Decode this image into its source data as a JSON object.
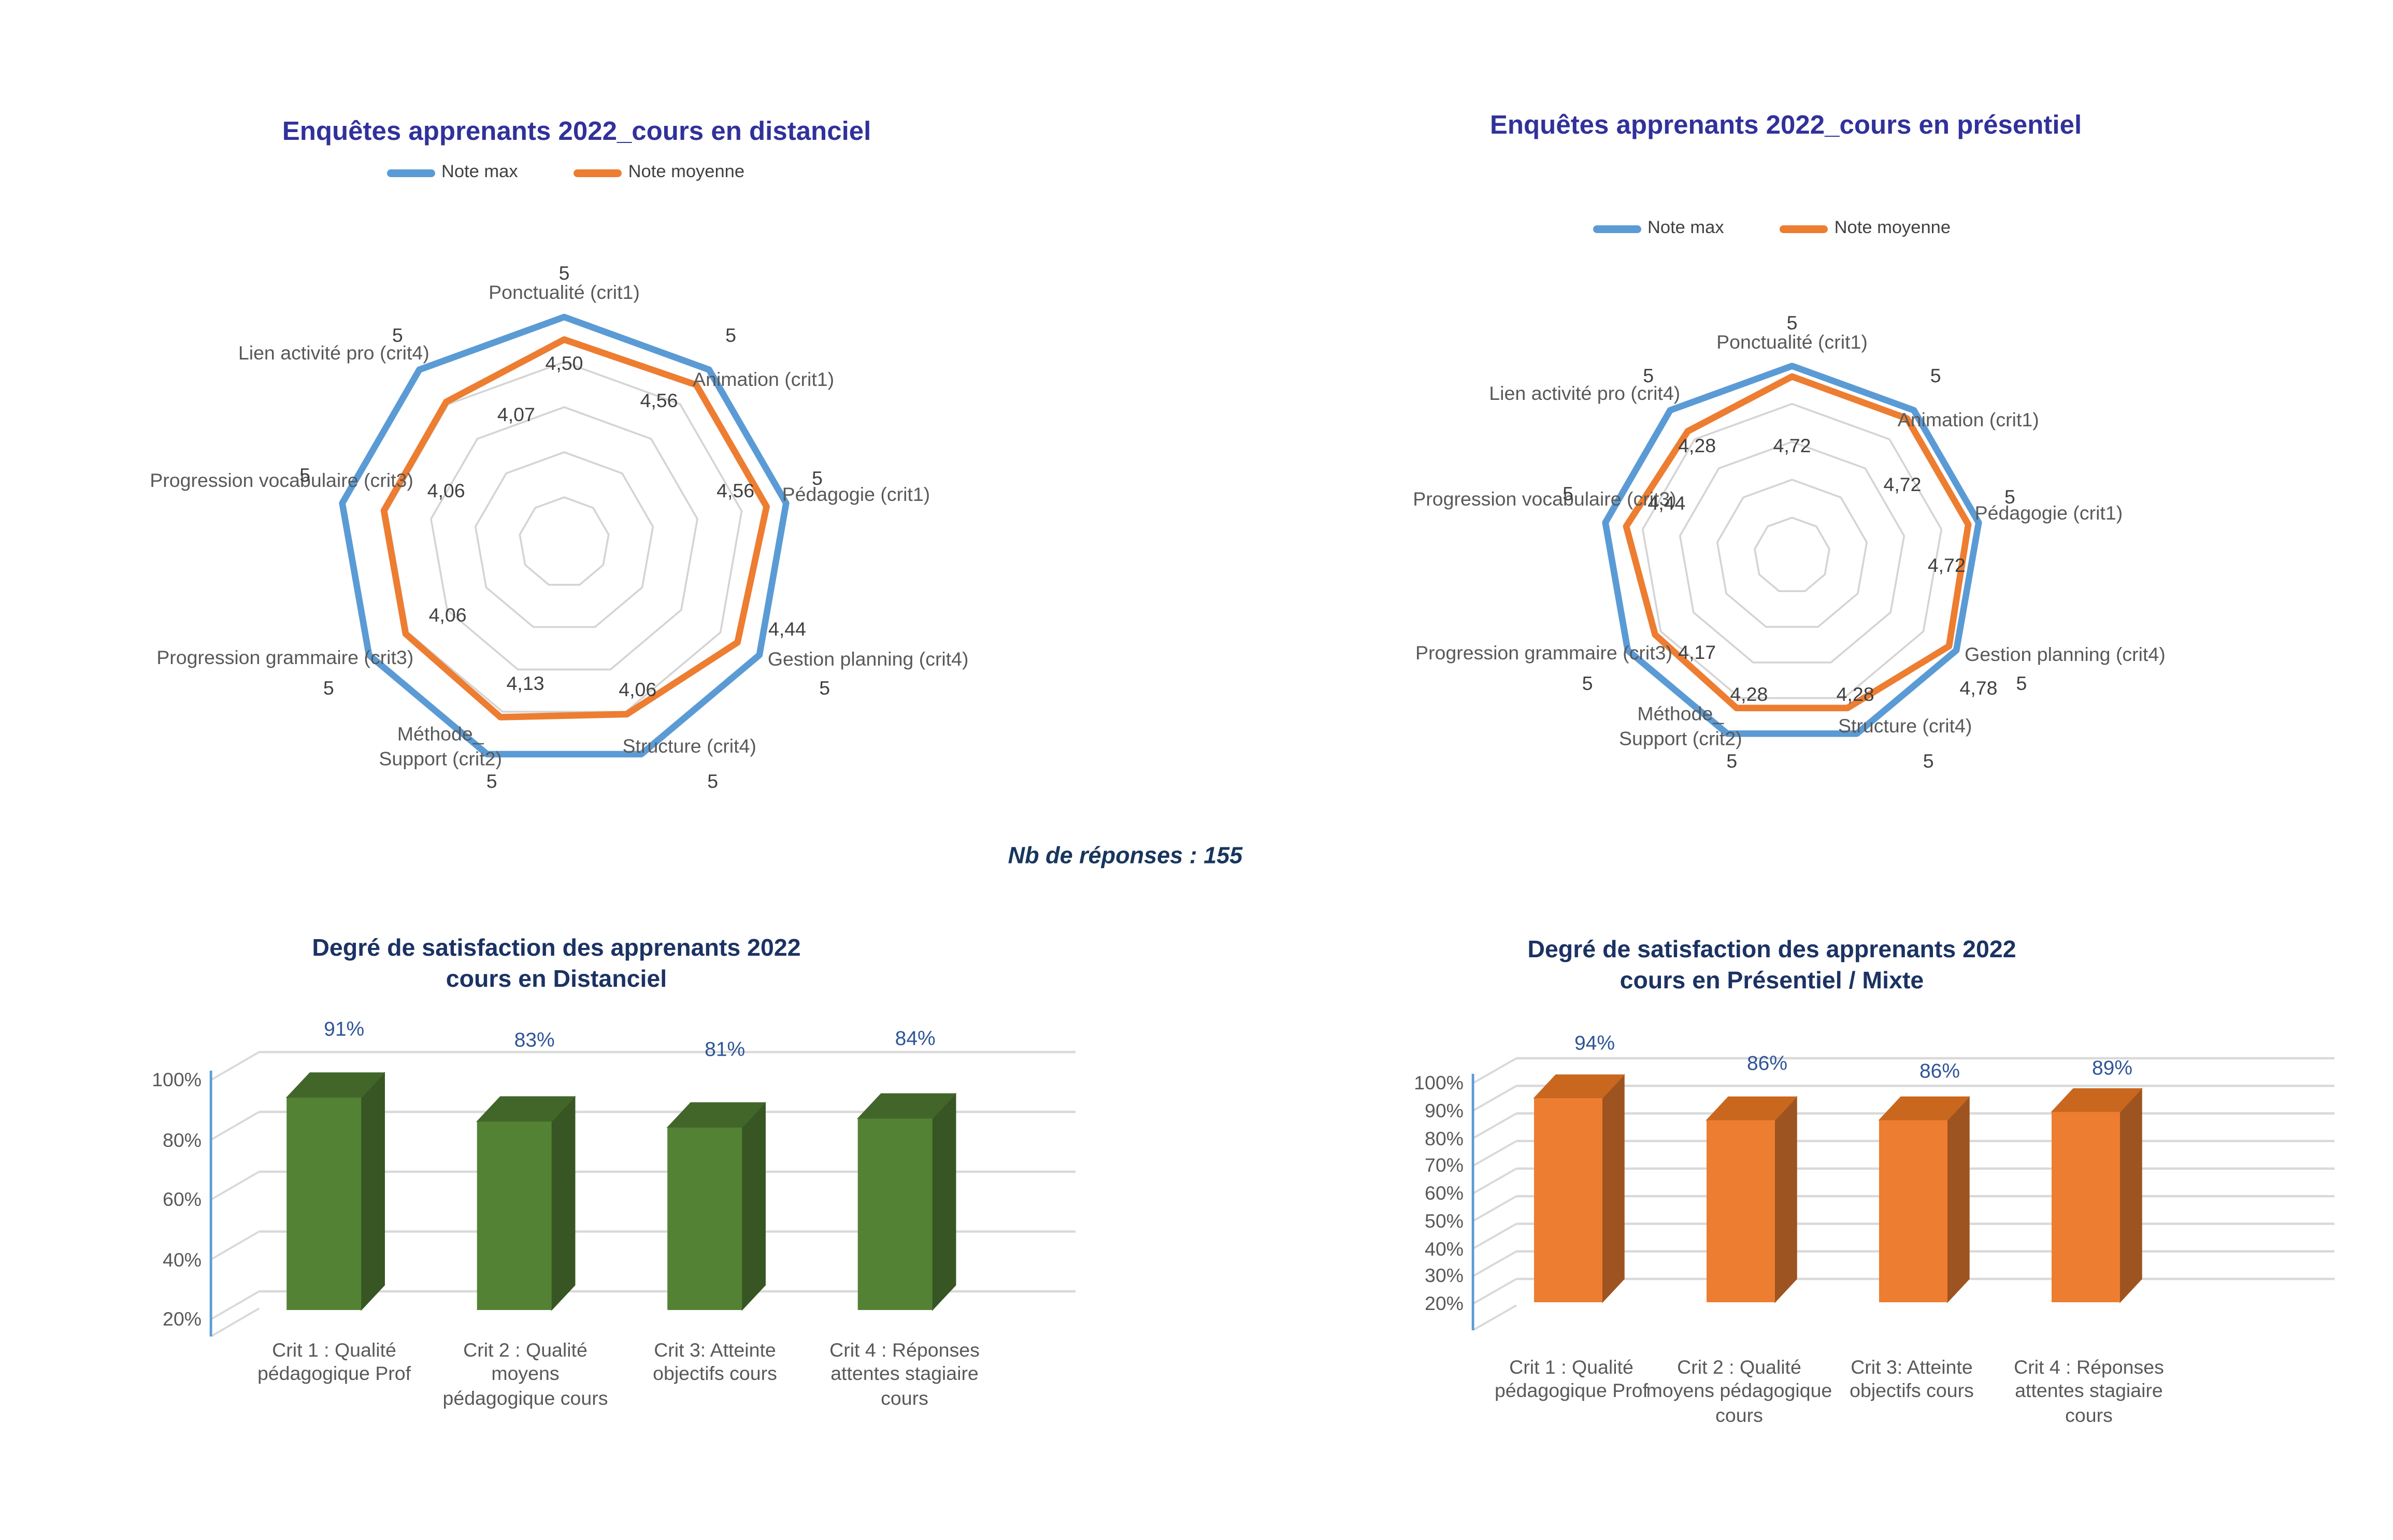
{
  "note_text": "Nb de réponses : 155",
  "radar_left": {
    "title": "Enquêtes apprenants 2022_cours en distanciel",
    "legend_max": "Note max",
    "legend_moyenne": "Note moyenne"
  },
  "radar_right": {
    "title": "Enquêtes apprenants 2022_cours en présentiel",
    "legend_max": "Note max",
    "legend_moyenne": "Note moyenne"
  },
  "bar_left": {
    "title_line1": "Degré de satisfaction des apprenants 2022",
    "title_line2": "cours en Distanciel"
  },
  "bar_right": {
    "title_line1": "Degré de satisfaction des apprenants 2022",
    "title_line2": "cours en Présentiel / Mixte"
  },
  "colors": {
    "note_max_blue": "#5B9BD5",
    "note_moyenne_orange": "#ED7D31",
    "radar_title": "#31319B",
    "bar_title": "#1B3263",
    "note_text": "#17365D",
    "data_label_blue": "#2F5597",
    "axis_label_gray": "#595959",
    "value_label_gray": "#404040",
    "grid_gray": "#D4D4D4",
    "green_front": "#548235",
    "green_side": "#375623",
    "green_top": "#42662A",
    "orange_front": "#ED7D31",
    "orange_side": "#9E5420",
    "orange_top": "#C9671E"
  },
  "chart_data": [
    {
      "id": "radar-distanciel",
      "type": "radar",
      "title": "Enquêtes apprenants 2022_cours en distanciel",
      "legend": [
        "Note max",
        "Note moyenne"
      ],
      "legend_position": "top",
      "axis_range": [
        0,
        5
      ],
      "grid": true,
      "categories": [
        "Ponctualité (crit1)",
        "Animation (crit1)",
        "Pédagogie (crit1)",
        "Gestion planning (crit4)",
        "Structure (crit4)",
        "Méthode_\nSupport (crit2)",
        "Progression grammaire (crit3)",
        "Progression vocabulaire (crit3)",
        "Lien activité pro (crit4)"
      ],
      "series": [
        {
          "name": "Note max",
          "values": [
            5,
            5,
            5,
            5,
            5,
            5,
            5,
            5,
            5
          ]
        },
        {
          "name": "Note moyenne",
          "values": [
            4.5,
            4.56,
            4.56,
            4.44,
            4.06,
            4.13,
            4.06,
            4.06,
            4.07
          ]
        }
      ],
      "max_labels": [
        "5",
        "5",
        "5",
        "5",
        "5",
        "5",
        "5",
        "5",
        "5"
      ],
      "value_labels": [
        "4,50",
        "4,56",
        "4,56",
        "4,44",
        "4,06",
        "4,13",
        "4,06",
        "4,06",
        "4,07"
      ]
    },
    {
      "id": "radar-presentiel",
      "type": "radar",
      "title": "Enquêtes apprenants 2022_cours en présentiel",
      "legend": [
        "Note max",
        "Note moyenne"
      ],
      "legend_position": "top",
      "axis_range": [
        0,
        5
      ],
      "grid": true,
      "categories": [
        "Ponctualité (crit1)",
        "Animation (crit1)",
        "Pédagogie (crit1)",
        "Gestion planning (crit4)",
        "Structure (crit4)",
        "Méthode_\nSupport (crit2)",
        "Progression grammaire (crit3)",
        "Progression vocabulaire (crit3)",
        "Lien activité pro (crit4)"
      ],
      "series": [
        {
          "name": "Note max",
          "values": [
            5,
            5,
            5,
            5,
            5,
            5,
            5,
            5,
            5
          ]
        },
        {
          "name": "Note moyenne",
          "values": [
            4.72,
            4.72,
            4.72,
            4.78,
            4.28,
            4.28,
            4.17,
            4.44,
            4.28
          ]
        }
      ],
      "max_labels": [
        "5",
        "5",
        "5",
        "5",
        "5",
        "5",
        "5",
        "5",
        "5"
      ],
      "value_labels": [
        "4,72",
        "4,72",
        "4,72",
        "4,78",
        "4,28",
        "4,28",
        "4,17",
        "4,44",
        "4,28"
      ]
    },
    {
      "id": "bar-distanciel",
      "type": "bar",
      "title": "Degré de satisfaction des apprenants 2022 cours en Distanciel",
      "xlabel": "",
      "ylabel": "",
      "ylim": [
        20,
        100
      ],
      "y_ticks": [
        "100%",
        "80%",
        "60%",
        "40%",
        "20%"
      ],
      "y_tick_values": [
        100,
        80,
        60,
        40,
        20
      ],
      "categories": [
        "Crit 1 : Qualité pédagogique Prof",
        "Crit 2 : Qualité moyens pédagogique cours",
        "Crit 3: Atteinte objectifs cours",
        "Crit 4 : Réponses attentes stagiaire cours"
      ],
      "category_lines": [
        [
          "Crit 1 : Qualité",
          "pédagogique Prof"
        ],
        [
          "Crit 2 : Qualité",
          "moyens",
          "pédagogique cours"
        ],
        [
          "Crit 3: Atteinte",
          "objectifs cours"
        ],
        [
          "Crit 4 : Réponses",
          "attentes stagiaire",
          "cours"
        ]
      ],
      "values": [
        91,
        83,
        81,
        84
      ],
      "value_labels": [
        "91%",
        "83%",
        "81%",
        "84%"
      ],
      "bar_color": "#548235",
      "style": "3d"
    },
    {
      "id": "bar-presentiel",
      "type": "bar",
      "title": "Degré de satisfaction des apprenants 2022 cours en Présentiel / Mixte",
      "xlabel": "",
      "ylabel": "",
      "ylim": [
        20,
        100
      ],
      "y_ticks": [
        "100%",
        "90%",
        "80%",
        "70%",
        "60%",
        "50%",
        "40%",
        "30%",
        "20%"
      ],
      "y_tick_values": [
        100,
        90,
        80,
        70,
        60,
        50,
        40,
        30,
        20
      ],
      "categories": [
        "Crit 1 : Qualité pédagogique Prof",
        "Crit 2 : Qualité moyens pédagogique cours",
        "Crit 3: Atteinte objectifs cours",
        "Crit 4 : Réponses attentes stagiaire cours"
      ],
      "category_lines": [
        [
          "Crit 1 : Qualité",
          "pédagogique Prof"
        ],
        [
          "Crit 2 : Qualité",
          "moyens pédagogique",
          "cours"
        ],
        [
          "Crit 3: Atteinte",
          "objectifs cours"
        ],
        [
          "Crit 4 : Réponses",
          "attentes stagiaire",
          "cours"
        ]
      ],
      "values": [
        94,
        86,
        86,
        89
      ],
      "value_labels": [
        "94%",
        "86%",
        "86%",
        "89%"
      ],
      "bar_color": "#ED7D31",
      "style": "3d"
    }
  ]
}
